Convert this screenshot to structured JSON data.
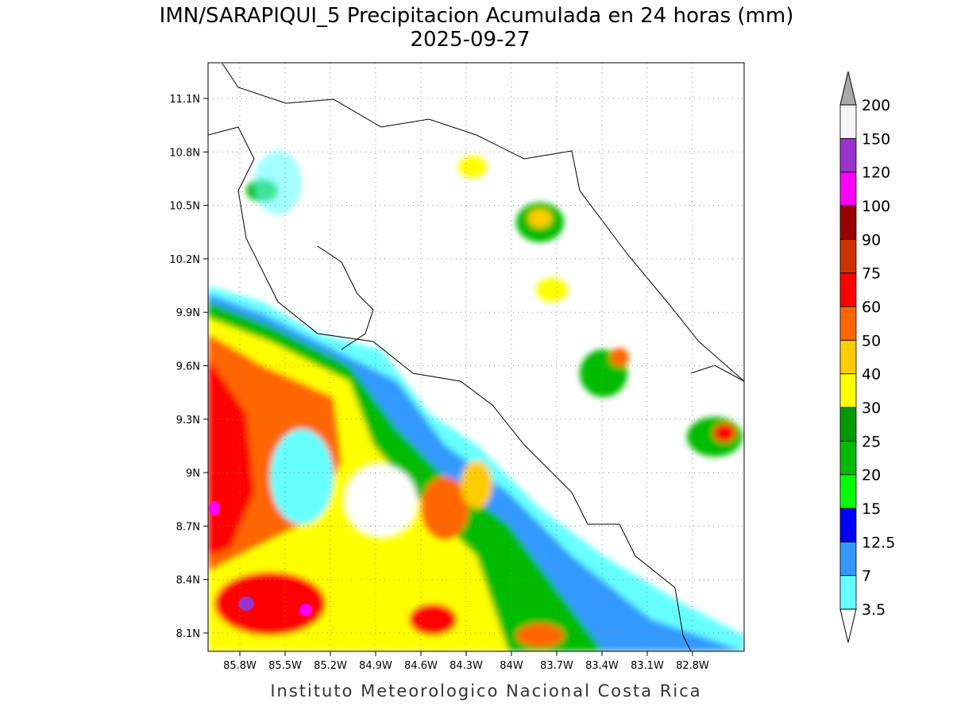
{
  "title": "IMN/SARAPIQUI_5 Precipitacion Acumulada en 24 horas (mm)",
  "subtitle": "2025-09-27",
  "map": {
    "lat_labels": [
      "11.1N",
      "10.8N",
      "10.5N",
      "10.2N",
      "9.9N",
      "9.6N",
      "9.3N",
      "9N",
      "8.7N",
      "8.4N",
      "8.1N"
    ],
    "lon_labels": [
      "85.8W",
      "85.5W",
      "85.2W",
      "84.9W",
      "84.6W",
      "84.3W",
      "84W",
      "83.7W",
      "83.4W",
      "83.1W",
      "82.8W"
    ]
  },
  "colorbar": {
    "levels": [
      3.5,
      7,
      12.5,
      15,
      20,
      25,
      30,
      40,
      50,
      60,
      75,
      90,
      100,
      120,
      150,
      200
    ],
    "colors": [
      "#66ffff",
      "#3399ff",
      "#0000ff",
      "#00ff00",
      "#00bb00",
      "#009900",
      "#ffff00",
      "#ffcc00",
      "#ff6600",
      "#ff0000",
      "#cc3300",
      "#990000",
      "#ff00ff",
      "#9933cc",
      "#f5f5f5"
    ]
  },
  "footer": "Instituto Meteorologico Nacional Costa Rica"
}
